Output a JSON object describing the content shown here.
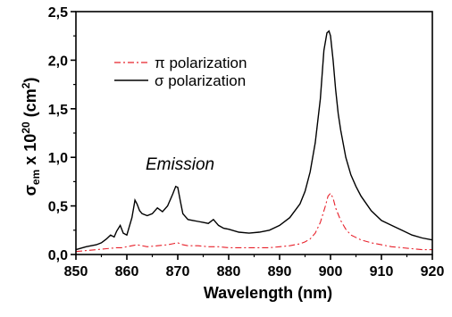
{
  "chart_data": {
    "type": "line",
    "title": "",
    "xlabel": "Wavelength (nm)",
    "ylabel_parts": {
      "symbol": "σ",
      "subscript": "em",
      "mid": " x 10",
      "exponent": "20",
      "unit_open": " (cm",
      "unit_exp": "2",
      "unit_close": ")"
    },
    "xlim": [
      850,
      920
    ],
    "ylim": [
      0.0,
      2.5
    ],
    "xticks": [
      850,
      860,
      870,
      880,
      890,
      900,
      910,
      920
    ],
    "yticks": [
      "0,0",
      "0,5",
      "1,0",
      "1,5",
      "2,0",
      "2,5"
    ],
    "ytick_values": [
      0.0,
      0.5,
      1.0,
      1.5,
      2.0,
      2.5
    ],
    "legend_position": "top-left",
    "annotation": "Emission",
    "series": [
      {
        "name": "π polarization",
        "color": "#e8202a",
        "style": "dash-dot",
        "x": [
          850,
          852,
          854,
          856,
          858,
          859,
          860,
          861,
          862,
          863,
          864,
          866,
          868,
          869,
          870,
          871,
          872,
          874,
          876,
          878,
          880,
          882,
          884,
          886,
          888,
          890,
          892,
          894,
          895,
          896,
          897,
          898,
          899,
          899.5,
          900,
          900.5,
          901,
          902,
          903,
          904,
          906,
          908,
          910,
          912,
          914,
          916,
          918,
          920
        ],
        "y": [
          0.03,
          0.04,
          0.05,
          0.06,
          0.07,
          0.07,
          0.08,
          0.09,
          0.1,
          0.09,
          0.08,
          0.09,
          0.1,
          0.11,
          0.12,
          0.1,
          0.09,
          0.09,
          0.08,
          0.08,
          0.07,
          0.07,
          0.07,
          0.07,
          0.07,
          0.08,
          0.09,
          0.11,
          0.13,
          0.16,
          0.22,
          0.33,
          0.5,
          0.6,
          0.63,
          0.58,
          0.48,
          0.35,
          0.26,
          0.2,
          0.15,
          0.12,
          0.1,
          0.08,
          0.07,
          0.06,
          0.05,
          0.05
        ]
      },
      {
        "name": "σ polarization",
        "color": "#000000",
        "style": "solid",
        "x": [
          850,
          852,
          853,
          854,
          855,
          856,
          856.8,
          857.5,
          858,
          858.7,
          859.3,
          860,
          861,
          861.6,
          862,
          862.5,
          863,
          864,
          865,
          866,
          867,
          868,
          869,
          869.6,
          870,
          870.5,
          871,
          872,
          873,
          874,
          875,
          876,
          877,
          878,
          879,
          880,
          882,
          884,
          886,
          888,
          890,
          892,
          894,
          895,
          896,
          897,
          898,
          898.7,
          899.3,
          899.7,
          900,
          900.5,
          901,
          901.5,
          902,
          903,
          904,
          905,
          906,
          908,
          910,
          912,
          914,
          916,
          918,
          920
        ],
        "y": [
          0.05,
          0.08,
          0.09,
          0.1,
          0.12,
          0.16,
          0.2,
          0.18,
          0.24,
          0.3,
          0.22,
          0.2,
          0.38,
          0.56,
          0.52,
          0.45,
          0.42,
          0.4,
          0.42,
          0.48,
          0.44,
          0.5,
          0.62,
          0.7,
          0.69,
          0.55,
          0.42,
          0.36,
          0.35,
          0.34,
          0.33,
          0.32,
          0.36,
          0.3,
          0.27,
          0.26,
          0.23,
          0.22,
          0.23,
          0.25,
          0.3,
          0.38,
          0.52,
          0.65,
          0.85,
          1.15,
          1.6,
          2.1,
          2.28,
          2.3,
          2.25,
          2.0,
          1.7,
          1.45,
          1.28,
          1.0,
          0.82,
          0.7,
          0.6,
          0.45,
          0.35,
          0.3,
          0.25,
          0.2,
          0.17,
          0.15
        ]
      }
    ]
  }
}
